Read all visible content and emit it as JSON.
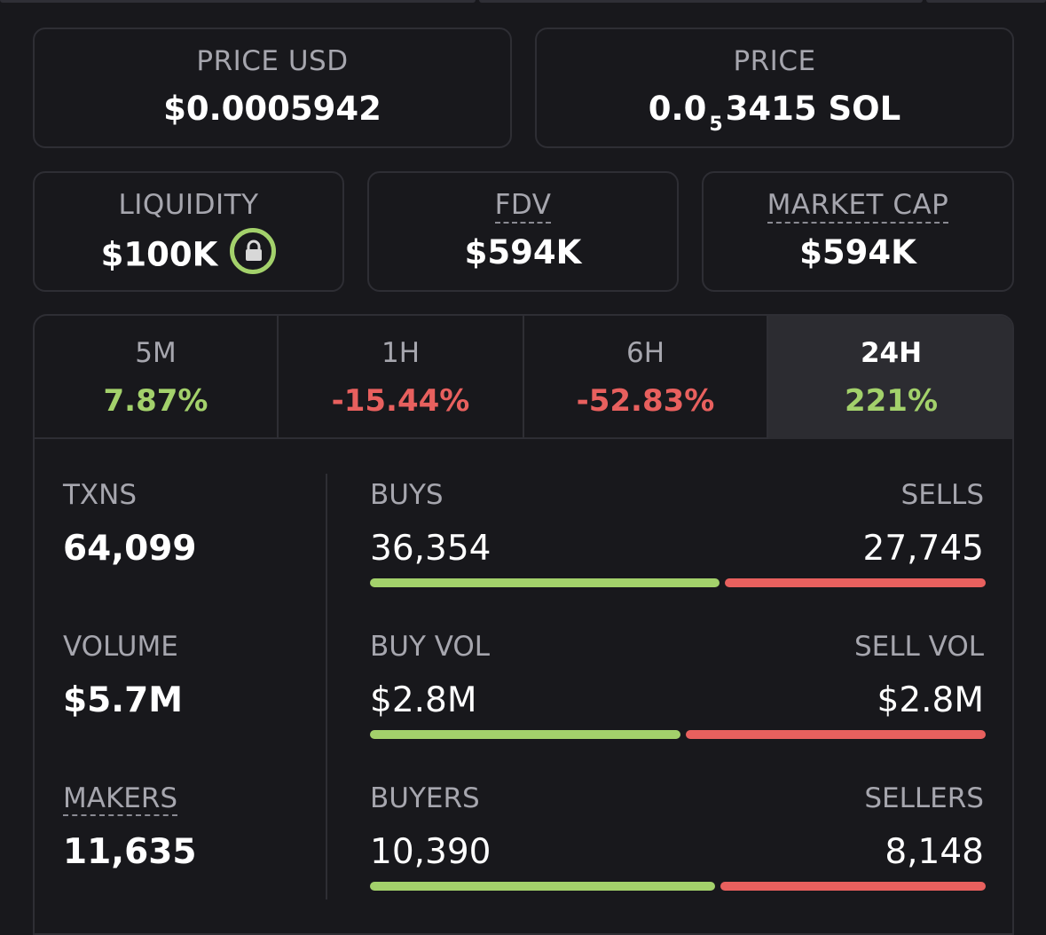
{
  "price_usd": {
    "label": "PRICE USD",
    "value": "$0.0005942"
  },
  "price_sol": {
    "label": "PRICE",
    "prefix": "0.0",
    "subscript": "5",
    "digits": "3415",
    "unit": "SOL"
  },
  "liquidity": {
    "label": "LIQUIDITY",
    "value": "$100K",
    "icon": "lock-icon",
    "icon_color": "#a3d16b"
  },
  "fdv": {
    "label": "FDV",
    "value": "$594K"
  },
  "market_cap": {
    "label": "MARKET CAP",
    "value": "$594K"
  },
  "tabs": [
    {
      "label": "5M",
      "change": "7.87%",
      "direction": "up"
    },
    {
      "label": "1H",
      "change": "-15.44%",
      "direction": "down"
    },
    {
      "label": "6H",
      "change": "-52.83%",
      "direction": "down"
    },
    {
      "label": "24H",
      "change": "221%",
      "direction": "up",
      "active": true
    }
  ],
  "stats": {
    "txns": {
      "label": "TXNS",
      "value": "64,099"
    },
    "volume": {
      "label": "VOLUME",
      "value": "$5.7M"
    },
    "makers": {
      "label": "MAKERS",
      "value": "11,635"
    },
    "buys": {
      "label": "BUYS",
      "value": "36,354"
    },
    "sells": {
      "label": "SELLS",
      "value": "27,745"
    },
    "buy_vol": {
      "label": "BUY VOL",
      "value": "$2.8M"
    },
    "sell_vol": {
      "label": "SELL VOL",
      "value": "$2.8M"
    },
    "buyers": {
      "label": "BUYERS",
      "value": "10,390"
    },
    "sellers": {
      "label": "SELLERS",
      "value": "8,148"
    }
  },
  "colors": {
    "positive": "#a3d16b",
    "negative": "#e8605e",
    "background": "#18181c"
  },
  "ratios": {
    "txns_buy_fraction": 0.567,
    "volume_buy_fraction": 0.5,
    "makers_buy_fraction": 0.56
  }
}
